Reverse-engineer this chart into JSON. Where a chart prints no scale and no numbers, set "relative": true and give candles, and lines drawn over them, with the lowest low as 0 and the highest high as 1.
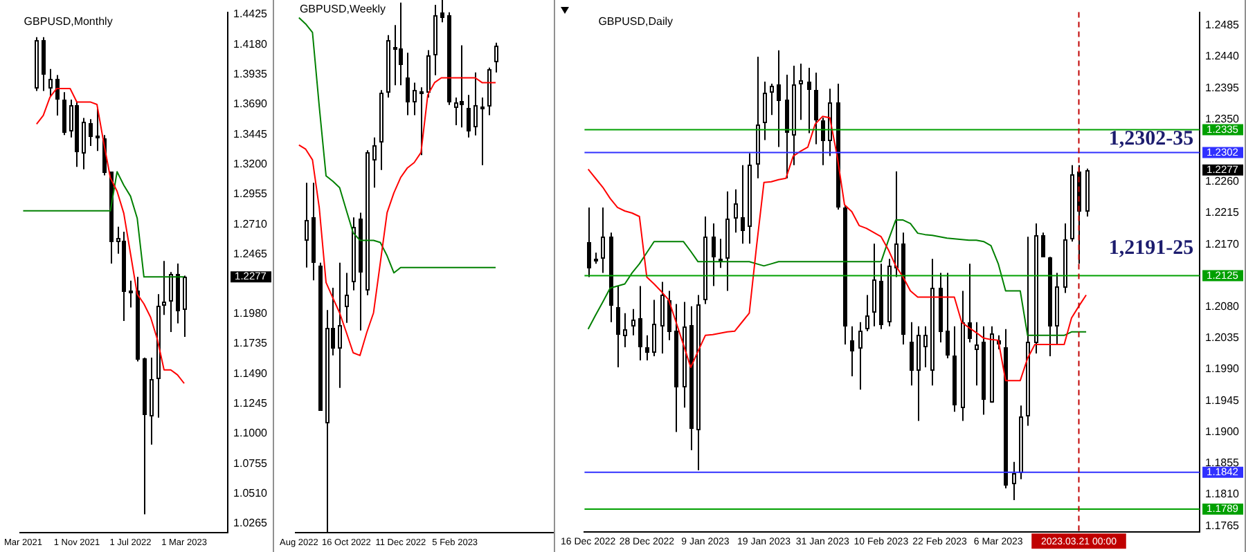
{
  "chart_data": [
    {
      "type": "candlestick",
      "title": "GBPUSD,Monthly",
      "categories": [
        "Mar 2021",
        null,
        null,
        null,
        null,
        null,
        null,
        null,
        "1 Nov 2021",
        null,
        null,
        null,
        null,
        null,
        null,
        null,
        "1 Jul 2022",
        null,
        null,
        null,
        null,
        null,
        null,
        null,
        "1 Mar 2023",
        null,
        null,
        null,
        null,
        null,
        null
      ],
      "ohlc": [
        null,
        null,
        [
          1.382,
          1.424,
          1.38,
          1.422
        ],
        [
          1.421,
          1.424,
          1.38,
          1.393
        ],
        [
          1.382,
          1.398,
          1.375,
          1.39
        ],
        [
          1.39,
          1.393,
          1.36,
          1.373
        ],
        [
          1.373,
          1.379,
          1.344,
          1.346
        ],
        [
          1.346,
          1.373,
          1.342,
          1.368
        ],
        [
          1.368,
          1.371,
          1.318,
          1.329
        ],
        [
          1.329,
          1.358,
          1.316,
          1.355
        ],
        [
          1.354,
          1.357,
          1.335,
          1.343
        ],
        [
          1.342,
          1.366,
          1.331,
          1.344
        ],
        [
          1.341,
          1.344,
          1.311,
          1.313
        ],
        [
          1.314,
          1.314,
          1.239,
          1.256
        ],
        [
          1.257,
          1.269,
          1.247,
          1.26
        ],
        [
          1.258,
          1.265,
          1.192,
          1.216
        ],
        [
          1.216,
          1.225,
          1.203,
          1.217
        ],
        [
          1.217,
          1.228,
          1.159,
          1.161
        ],
        [
          1.161,
          1.162,
          1.034,
          1.115
        ],
        [
          1.115,
          1.162,
          1.091,
          1.145
        ],
        [
          1.145,
          1.214,
          1.113,
          1.205
        ],
        [
          1.205,
          1.241,
          1.197,
          1.208
        ],
        [
          1.208,
          1.232,
          1.183,
          1.231
        ],
        [
          1.231,
          1.239,
          1.19,
          1.201
        ],
        [
          1.201,
          1.229,
          1.179,
          1.228
        ],
        null,
        null,
        null,
        null,
        null,
        null
      ],
      "series": [
        {
          "type": "line",
          "color": "#ff0000",
          "values": [
            null,
            null,
            1.353,
            1.36,
            1.375,
            1.382,
            1.382,
            1.382,
            1.371,
            1.371,
            1.371,
            1.369,
            1.338,
            1.309,
            1.298,
            1.28,
            1.247,
            1.214,
            1.206,
            1.195,
            1.177,
            1.152,
            1.152,
            1.148,
            1.141,
            null,
            null,
            null,
            null,
            null,
            null
          ]
        },
        {
          "type": "line",
          "color": "#008000",
          "values": [
            1.282,
            1.282,
            1.282,
            1.282,
            1.282,
            1.282,
            1.282,
            1.282,
            1.282,
            1.282,
            1.282,
            1.282,
            1.282,
            1.282,
            1.314,
            1.303,
            1.294,
            1.276,
            1.228,
            1.228,
            1.228,
            1.228,
            1.228,
            1.228,
            1.228,
            null,
            null,
            null,
            null,
            null,
            null
          ]
        }
      ],
      "ylim": [
        1.0188,
        1.4444
      ],
      "yticks": [
        1.0265,
        {
          "value": 1.051,
          "label": "1.0510"
        },
        1.0755,
        {
          "value": 1.1,
          "label": "1.1000"
        },
        1.1245,
        {
          "value": 1.149,
          "label": "1.1490"
        },
        1.1735,
        {
          "value": 1.198,
          "label": "1.1980"
        },
        1.2465,
        {
          "value": 1.271,
          "label": "1.2710"
        },
        1.2955,
        {
          "value": 1.32,
          "label": "1.3200"
        },
        1.3445,
        {
          "value": 1.369,
          "label": "1.3690"
        },
        1.3935,
        {
          "value": 1.418,
          "label": "1.4180"
        },
        1.4425
      ],
      "annotations": [
        "1.2277"
      ]
    },
    {
      "type": "candlestick",
      "title": "GBPUSD,Weekly",
      "relative": true,
      "categories": [
        "Aug 2022",
        null,
        null,
        null,
        null,
        null,
        null,
        "16 Oct 2022",
        null,
        null,
        null,
        null,
        null,
        null,
        null,
        "11 Dec 2022",
        null,
        null,
        null,
        null,
        null,
        null,
        null,
        "5 Feb 2023",
        null,
        null,
        null,
        null,
        null,
        null,
        null,
        null,
        null,
        null,
        null,
        null,
        null,
        null
      ],
      "ohlc": [
        null,
        [
          0.549,
          0.657,
          0.498,
          0.587
        ],
        [
          0.592,
          0.657,
          0.474,
          0.507
        ],
        [
          0.502,
          0.507,
          0.23,
          0.23
        ],
        [
          0.207,
          0.418,
          0,
          0.385
        ],
        [
          0.385,
          0.46,
          0.333,
          0.347
        ],
        [
          0.347,
          0.507,
          0.272,
          0.39
        ],
        [
          0.423,
          0.488,
          0.394,
          0.446
        ],
        [
          0.469,
          0.592,
          0.455,
          0.573
        ],
        [
          0.589,
          0.601,
          0.38,
          0.488
        ],
        [
          0.455,
          0.718,
          0.446,
          0.714
        ],
        [
          0.7,
          0.742,
          0.648,
          0.728
        ],
        [
          0.732,
          0.831,
          0.681,
          0.826
        ],
        [
          0.826,
          0.934,
          0.817,
          0.925
        ],
        [
          0.911,
          0.953,
          0.84,
          0.913
        ],
        [
          0.908,
          0.995,
          0.84,
          0.878
        ],
        [
          0.854,
          0.901,
          0.784,
          0.808
        ],
        [
          0.808,
          0.845,
          0.784,
          0.831
        ],
        [
          0.828,
          0.836,
          0.709,
          0.826
        ],
        [
          0.826,
          0.906,
          0.817,
          0.897
        ],
        [
          0.897,
          0.991,
          0.859,
          0.972
        ],
        [
          0.977,
          1.0,
          0.958,
          0.967
        ],
        [
          0.972,
          0.977,
          0.803,
          0.808
        ],
        [
          0.798,
          0.817,
          0.765,
          0.809
        ],
        [
          0.81,
          0.915,
          0.761,
          0.803
        ],
        [
          0.798,
          0.822,
          0.742,
          0.753
        ],
        [
          0.761,
          0.864,
          0.746,
          0.803
        ],
        [
          0.8,
          0.817,
          0.69,
          0.801
        ],
        [
          0.798,
          0.873,
          0.784,
          0.869
        ],
        [
          0.883,
          0.92,
          0.864,
          0.915
        ],
        null,
        null,
        null,
        null,
        null,
        null,
        null,
        null
      ],
      "series": [
        {
          "type": "line",
          "color": "#ff0000",
          "values": [
            0.728,
            0.72,
            0.7,
            0.61,
            0.47,
            0.441,
            0.413,
            0.376,
            0.338,
            0.333,
            0.376,
            0.413,
            0.507,
            0.601,
            0.638,
            0.667,
            0.685,
            0.695,
            0.714,
            0.822,
            0.845,
            0.854,
            0.854,
            0.854,
            0.854,
            0.854,
            0.854,
            0.845,
            0.845,
            0.845,
            null,
            null,
            null,
            null,
            null,
            null,
            null,
            null
          ]
        },
        {
          "type": "line",
          "color": "#008000",
          "values": [
            0.967,
            0.955,
            0.939,
            0.8,
            0.67,
            0.66,
            0.648,
            0.605,
            0.563,
            0.549,
            0.549,
            0.549,
            0.545,
            0.52,
            0.488,
            0.498,
            0.498,
            0.498,
            0.498,
            0.498,
            0.498,
            0.498,
            0.498,
            0.498,
            0.498,
            0.498,
            0.498,
            0.498,
            0.498,
            0.498,
            null,
            null,
            null,
            null,
            null,
            null,
            null,
            null
          ]
        }
      ]
    },
    {
      "type": "candlestick",
      "title": "GBPUSD,Daily",
      "categories": [
        "16 Dec 2022",
        null,
        null,
        null,
        null,
        null,
        null,
        null,
        "28 Dec 2022",
        null,
        null,
        null,
        null,
        null,
        null,
        null,
        "9 Jan 2023",
        null,
        null,
        null,
        null,
        null,
        null,
        null,
        "19 Jan 2023",
        null,
        null,
        null,
        null,
        null,
        null,
        null,
        "31 Jan 2023",
        null,
        null,
        null,
        null,
        null,
        null,
        null,
        "10 Feb 2023",
        null,
        null,
        null,
        null,
        null,
        null,
        null,
        "22 Feb 2023",
        null,
        null,
        null,
        null,
        null,
        null,
        null,
        "6 Mar 2023",
        null,
        null,
        null,
        null,
        null,
        null,
        null,
        null,
        null,
        null,
        "2023.03.21 00:00",
        null,
        null,
        null,
        null,
        null,
        null,
        null,
        null,
        null,
        null,
        null,
        null,
        null,
        null,
        null,
        null
      ],
      "ohlc": [
        [
          1.2174,
          1.2223,
          1.2123,
          1.2136
        ],
        [
          1.215,
          1.2158,
          1.2142,
          1.2147
        ],
        [
          1.2149,
          1.2223,
          1.2129,
          1.2181
        ],
        [
          1.2181,
          1.2187,
          1.2058,
          1.2081
        ],
        [
          1.2079,
          1.211,
          1.1993,
          1.204
        ],
        [
          1.2039,
          1.2071,
          1.2022,
          1.2048
        ],
        [
          1.2052,
          1.2077,
          1.2039,
          1.2061
        ],
        [
          1.2064,
          1.211,
          1.2003,
          1.2022
        ],
        [
          1.2022,
          1.2039,
          1.2003,
          1.2014
        ],
        [
          1.2013,
          1.209,
          1.2009,
          1.2055
        ],
        [
          1.2052,
          1.2116,
          1.2013,
          1.2097
        ],
        [
          1.209,
          1.2103,
          1.2032,
          1.2045
        ],
        [
          1.2045,
          1.2084,
          1.19,
          1.1964
        ],
        [
          1.1964,
          1.2087,
          1.1935,
          1.2052
        ],
        [
          1.2053,
          1.2081,
          1.1874,
          1.1903
        ],
        [
          1.1903,
          1.2097,
          1.1845,
          1.2084
        ],
        [
          1.209,
          1.221,
          1.2084,
          1.2181
        ],
        [
          1.2182,
          1.22,
          1.211,
          1.2152
        ],
        [
          1.215,
          1.2178,
          1.2136,
          1.2147
        ],
        [
          1.2149,
          1.2246,
          1.2103,
          1.2207
        ],
        [
          1.2207,
          1.2249,
          1.2187,
          1.2229
        ],
        [
          1.221,
          1.2284,
          1.2171,
          1.2191
        ],
        [
          1.2194,
          1.2301,
          1.2171,
          1.2284
        ],
        [
          1.2286,
          1.244,
          1.2265,
          1.2343
        ],
        [
          1.2344,
          1.2404,
          1.232,
          1.2388
        ],
        [
          1.2388,
          1.2401,
          1.2356,
          1.2398
        ],
        [
          1.2401,
          1.2449,
          1.231,
          1.2378
        ],
        [
          1.2378,
          1.2414,
          1.2265,
          1.233
        ],
        [
          1.2328,
          1.2427,
          1.2284,
          1.2401
        ],
        [
          1.2401,
          1.243,
          1.2349,
          1.2406
        ],
        [
          1.2405,
          1.2424,
          1.233,
          1.2394
        ],
        [
          1.2393,
          1.2417,
          1.2314,
          1.2349
        ],
        [
          1.2349,
          1.2352,
          1.2284,
          1.232
        ],
        [
          1.232,
          1.2394,
          1.2297,
          1.2375
        ],
        [
          1.2375,
          1.2401,
          1.222,
          1.2223
        ],
        [
          1.2223,
          1.2226,
          1.2026,
          1.2052
        ],
        [
          1.2031,
          1.2052,
          1.198,
          1.2016
        ],
        [
          1.2019,
          1.2058,
          1.1961,
          1.2045
        ],
        [
          1.2048,
          1.2097,
          1.2045,
          1.2068
        ],
        [
          1.2071,
          1.2171,
          1.2052,
          1.2119
        ],
        [
          1.2118,
          1.2142,
          1.2048,
          1.2055
        ],
        [
          1.2058,
          1.2149,
          1.2052,
          1.2139
        ],
        [
          1.2136,
          1.2275,
          1.2123,
          1.2171
        ],
        [
          1.2171,
          1.2187,
          1.2026,
          1.2039
        ],
        [
          1.2029,
          1.2058,
          1.1967,
          1.1987
        ],
        [
          1.1987,
          1.2052,
          1.1916,
          1.2039
        ],
        [
          1.2022,
          1.2052,
          1.1993,
          1.2039
        ],
        [
          1.1987,
          1.2149,
          1.1967,
          1.2107
        ],
        [
          1.2108,
          1.2129,
          1.2029,
          1.2045
        ],
        [
          1.2045,
          1.2129,
          1.2006,
          1.2009
        ],
        [
          1.2009,
          1.2052,
          1.1929,
          1.1938
        ],
        [
          1.1935,
          1.2103,
          1.1916,
          1.2058
        ],
        [
          1.2058,
          1.2142,
          1.2029,
          1.2035
        ],
        [
          1.2019,
          1.2058,
          1.1967,
          1.2026
        ],
        [
          1.2029,
          1.2052,
          1.1925,
          1.1945
        ],
        [
          1.1942,
          1.2052,
          1.1942,
          1.2042
        ],
        [
          1.2032,
          1.2039,
          1.2019,
          1.2026
        ],
        [
          1.2022,
          1.2048,
          1.1819,
          1.1822
        ],
        [
          1.1825,
          1.1857,
          1.1802,
          1.1841
        ],
        [
          1.1841,
          1.1938,
          1.1832,
          1.1922
        ],
        [
          1.1922,
          1.2181,
          1.1909,
          1.2029
        ],
        [
          1.2029,
          1.22,
          1.2013,
          1.2184
        ],
        [
          1.2184,
          1.2187,
          1.2152,
          1.2152
        ],
        [
          1.2152,
          1.2152,
          1.2009,
          1.2052
        ],
        [
          1.2052,
          1.2129,
          1.2026,
          1.211
        ],
        [
          1.2108,
          1.22,
          1.21,
          1.2178
        ],
        [
          1.2178,
          1.2284,
          1.2174,
          1.2271
        ],
        [
          1.2275,
          1.2284,
          1.2142,
          1.2217
        ],
        [
          1.2217,
          1.2279,
          1.221,
          1.2277
        ],
        null,
        null,
        null,
        null,
        null,
        null,
        null,
        null,
        null,
        null,
        null,
        null,
        null,
        null,
        null
      ],
      "series": [
        {
          "type": "line",
          "color": "#ff0000",
          "values": [
            1.2278,
            1.2265,
            1.2252,
            1.2236,
            1.2223,
            1.2218,
            1.2215,
            1.221,
            1.2123,
            1.2113,
            1.2102,
            1.209,
            1.2058,
            1.2026,
            1.1993,
            1.2016,
            1.2039,
            1.204,
            1.2042,
            1.2044,
            1.2045,
            1.2058,
            1.2071,
            1.2168,
            1.2259,
            1.226,
            1.2263,
            1.2265,
            1.2297,
            1.2304,
            1.231,
            1.2343,
            1.2354,
            1.2352,
            1.2297,
            1.2227,
            1.2217,
            1.2197,
            1.2193,
            1.2187,
            1.2181,
            1.2162,
            1.2139,
            1.2123,
            1.2103,
            1.2094,
            1.2094,
            1.2094,
            1.2094,
            1.2094,
            1.2094,
            1.2058,
            1.205,
            1.2043,
            1.2035,
            1.2033,
            1.2032,
            1.1974,
            1.1974,
            1.1974,
            1.2006,
            1.2026,
            1.2026,
            1.2026,
            1.2026,
            1.2026,
            1.2064,
            1.2081,
            1.2097,
            null,
            null,
            null,
            null,
            null,
            null,
            null,
            null,
            null,
            null,
            null,
            null,
            null,
            null,
            null
          ]
        },
        {
          "type": "line",
          "color": "#008000",
          "values": [
            1.2048,
            1.2068,
            1.2087,
            1.2107,
            1.211,
            1.2113,
            1.2129,
            1.2142,
            1.2158,
            1.2174,
            1.2174,
            1.2174,
            1.2174,
            1.2174,
            1.216,
            1.2145,
            1.2145,
            1.2145,
            1.2145,
            1.2145,
            1.2145,
            1.2145,
            1.2145,
            1.2142,
            1.2139,
            1.2142,
            1.2145,
            1.2145,
            1.2145,
            1.2145,
            1.2145,
            1.2145,
            1.2145,
            1.2145,
            1.2145,
            1.2145,
            1.2145,
            1.2145,
            1.2145,
            1.2145,
            1.2145,
            1.2176,
            1.2205,
            1.2205,
            1.22,
            1.2186,
            1.2184,
            1.2183,
            1.2181,
            1.2179,
            1.2178,
            1.2177,
            1.2176,
            1.2176,
            1.2174,
            1.2168,
            1.2142,
            1.2103,
            1.2103,
            1.2103,
            1.2039,
            1.2039,
            1.2039,
            1.2039,
            1.2039,
            1.2039,
            1.2044,
            1.2044,
            1.2044,
            null,
            null,
            null,
            null,
            null,
            null,
            null,
            null,
            null,
            null,
            null,
            null,
            null,
            null,
            null
          ]
        }
      ],
      "ylim": [
        1.1756,
        1.2504
      ],
      "yticks": [
        1.1765,
        {
          "value": 1.181,
          "label": "1.1810"
        },
        1.1855,
        {
          "value": 1.19,
          "label": "1.1900"
        },
        1.1945,
        {
          "value": 1.199,
          "label": "1.1990"
        },
        1.2035,
        {
          "value": 1.208,
          "label": "1.2080"
        },
        {
          "value": 1.217,
          "label": "1.2170"
        },
        1.2215,
        {
          "value": 1.226,
          "label": "1.2260"
        },
        {
          "value": 1.235,
          "label": "1.2350"
        },
        1.2395,
        {
          "value": 1.244,
          "label": "1.2440"
        },
        1.2485
      ],
      "ref_lines": [
        {
          "axis": "y",
          "value": 1.2335,
          "label": "1.2335",
          "color": "#00a000"
        },
        {
          "axis": "y",
          "value": 1.2302,
          "label": "1.2302",
          "color": "#3030ff"
        },
        {
          "axis": "y",
          "value": 1.2125,
          "label": "1.2125",
          "color": "#00a000"
        },
        {
          "axis": "y",
          "value": 1.1842,
          "label": "1.1842",
          "color": "#3030ff"
        },
        {
          "axis": "y",
          "value": 1.1789,
          "label": "1.1789",
          "color": "#00a000"
        },
        {
          "axis": "x",
          "value": "2023.03.21 00:00",
          "color": "#c00000",
          "line_style": "dashed"
        }
      ],
      "annotations": [
        "1,2302-35",
        "1,2191-25",
        "1.2277"
      ]
    }
  ]
}
